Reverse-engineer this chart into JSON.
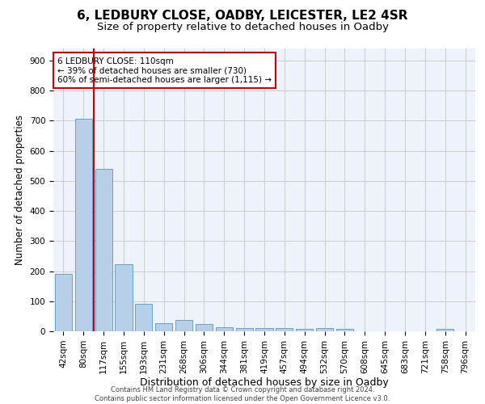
{
  "title1": "6, LEDBURY CLOSE, OADBY, LEICESTER, LE2 4SR",
  "title2": "Size of property relative to detached houses in Oadby",
  "xlabel": "Distribution of detached houses by size in Oadby",
  "ylabel": "Number of detached properties",
  "categories": [
    "42sqm",
    "80sqm",
    "117sqm",
    "155sqm",
    "193sqm",
    "231sqm",
    "268sqm",
    "306sqm",
    "344sqm",
    "381sqm",
    "419sqm",
    "457sqm",
    "494sqm",
    "532sqm",
    "570sqm",
    "608sqm",
    "645sqm",
    "683sqm",
    "721sqm",
    "758sqm",
    "796sqm"
  ],
  "values": [
    190,
    707,
    540,
    224,
    91,
    27,
    37,
    24,
    14,
    12,
    12,
    11,
    9,
    10,
    8,
    0,
    0,
    0,
    0,
    9,
    0
  ],
  "bar_color": "#b8cfe8",
  "bar_edge_color": "#6a9ec9",
  "vline_x": 1.5,
  "annotation_text": "6 LEDBURY CLOSE: 110sqm\n← 39% of detached houses are smaller (730)\n60% of semi-detached houses are larger (1,115) →",
  "annotation_box_color": "#cc0000",
  "vline_color": "#cc0000",
  "ylim": [
    0,
    940
  ],
  "yticks": [
    0,
    100,
    200,
    300,
    400,
    500,
    600,
    700,
    800,
    900
  ],
  "grid_color": "#cccccc",
  "bg_color": "#eef2fb",
  "footer_text": "Contains HM Land Registry data © Crown copyright and database right 2024.\nContains public sector information licensed under the Open Government Licence v3.0.",
  "title1_fontsize": 11,
  "title2_fontsize": 9.5,
  "xlabel_fontsize": 9,
  "ylabel_fontsize": 8.5,
  "tick_fontsize": 7.5,
  "footer_fontsize": 6
}
